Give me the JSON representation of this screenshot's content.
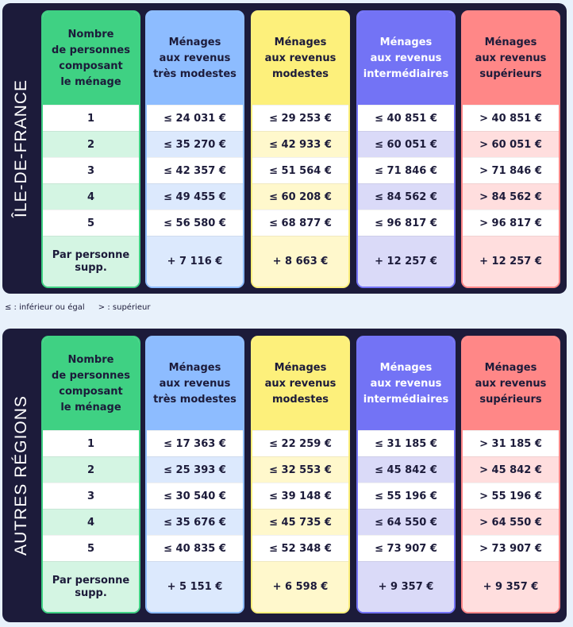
{
  "legend": {
    "le": "≤ : inférieur ou égal",
    "gt": "> : supérieur"
  },
  "columns": {
    "persons": {
      "header": [
        "Nombre",
        "de personnes",
        "composant",
        "le ménage"
      ],
      "head_bg": "#3fd183",
      "head_color": "#1c1b3a",
      "alt_bg": "#d4f5e3",
      "border": "#3fd183"
    },
    "tres_modestes": {
      "header": [
        "Ménages",
        "aux revenus",
        "très modestes"
      ],
      "head_bg": "#8dbcff",
      "head_color": "#1c1b3a",
      "alt_bg": "#dce9fd",
      "border": "#8dbcff"
    },
    "modestes": {
      "header": [
        "Ménages",
        "aux revenus",
        "modestes"
      ],
      "head_bg": "#fdf07b",
      "head_color": "#1c1b3a",
      "alt_bg": "#fff8cc",
      "border": "#fdf07b"
    },
    "intermediaires": {
      "header": [
        "Ménages",
        "aux revenus",
        "intermédiaires"
      ],
      "head_bg": "#7373f5",
      "head_color": "#ffffff",
      "alt_bg": "#dadaf8",
      "border": "#7373f5"
    },
    "superieurs": {
      "header": [
        "Ménages",
        "aux revenus",
        "supérieurs"
      ],
      "head_bg": "#ff8787",
      "head_color": "#1c1b3a",
      "alt_bg": "#ffdede",
      "border": "#ff8787"
    }
  },
  "tables": [
    {
      "region": "ÎLE-DE-FRANCE",
      "persons": [
        "1",
        "2",
        "3",
        "4",
        "5",
        "Par personne supp."
      ],
      "tres_modestes": [
        "≤ 24 031 €",
        "≤ 35 270 €",
        "≤ 42 357 €",
        "≤ 49 455 €",
        "≤ 56 580 €",
        "+ 7 116 €"
      ],
      "modestes": [
        "≤ 29 253 €",
        "≤ 42 933 €",
        "≤ 51 564 €",
        "≤ 60 208 €",
        "≤ 68 877 €",
        "+ 8 663 €"
      ],
      "intermediaires": [
        "≤ 40 851 €",
        "≤ 60 051 €",
        "≤ 71 846 €",
        "≤ 84 562 €",
        "≤ 96 817 €",
        "+ 12 257 €"
      ],
      "superieurs": [
        "> 40 851 €",
        "> 60 051 €",
        "> 71 846 €",
        "> 84 562 €",
        "> 96 817 €",
        "+ 12 257 €"
      ]
    },
    {
      "region": "AUTRES RÉGIONS",
      "persons": [
        "1",
        "2",
        "3",
        "4",
        "5",
        "Par personne supp."
      ],
      "tres_modestes": [
        "≤ 17 363 €",
        "≤ 25 393 €",
        "≤ 30 540 €",
        "≤ 35 676 €",
        "≤ 40 835 €",
        "+ 5 151 €"
      ],
      "modestes": [
        "≤ 22 259 €",
        "≤ 32 553 €",
        "≤ 39 148 €",
        "≤ 45 735 €",
        "≤ 52 348 €",
        "+ 6 598 €"
      ],
      "intermediaires": [
        "≤ 31 185 €",
        "≤ 45 842 €",
        "≤ 55 196 €",
        "≤ 64 550 €",
        "≤ 73 907 €",
        "+ 9 357 €"
      ],
      "superieurs": [
        "> 31 185 €",
        "> 45 842 €",
        "> 55 196 €",
        "> 64 550 €",
        "> 73 907 €",
        "+ 9 357 €"
      ]
    }
  ]
}
